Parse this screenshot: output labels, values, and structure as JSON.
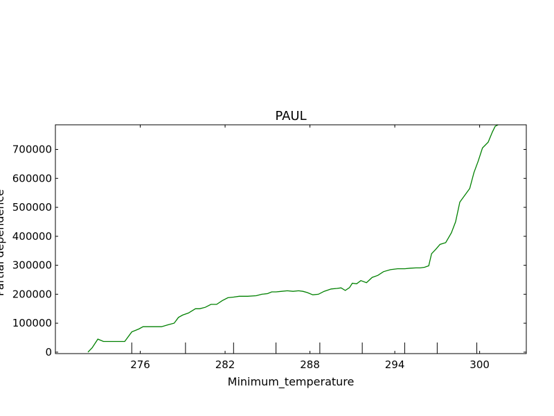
{
  "chart_data": {
    "type": "line",
    "title": "PAUL",
    "xlabel": "Minimum_temperature",
    "ylabel": "Partial dependence",
    "xlim": [
      270.0,
      303.3
    ],
    "ylim": [
      -5000,
      785000
    ],
    "x_ticks": [
      276,
      282,
      288,
      294,
      300
    ],
    "y_ticks": [
      0,
      100000,
      200000,
      300000,
      400000,
      500000,
      600000,
      700000
    ],
    "rug_x": [
      275.4,
      279.2,
      282.6,
      285.6,
      288.7,
      291.7,
      294.7,
      297.0,
      299.8
    ],
    "grid": false,
    "legend": "none",
    "line_color": "#008000",
    "series": [
      {
        "x": [
          272.3,
          272.6,
          273.0,
          273.4,
          273.9,
          274.4,
          274.9,
          275.4,
          275.9,
          276.2,
          276.6,
          277.0,
          277.5,
          278.0,
          278.4,
          278.7,
          279.0,
          279.4,
          279.9,
          280.2,
          280.6,
          281.0,
          281.4,
          281.8,
          282.2,
          282.6,
          283.0,
          283.6,
          284.2,
          284.6,
          285.0,
          285.3,
          285.6,
          286.0,
          286.4,
          286.8,
          287.2,
          287.5,
          287.8,
          288.2,
          288.6,
          289.0,
          289.5,
          289.9,
          290.2,
          290.5,
          290.8,
          291.0,
          291.3,
          291.6,
          292.0,
          292.4,
          292.8,
          293.2,
          293.7,
          294.2,
          294.7,
          295.1,
          295.5,
          295.8,
          296.1,
          296.4,
          296.6,
          296.9,
          297.2,
          297.6,
          298.0,
          298.3,
          298.6,
          299.0,
          299.3,
          299.6,
          299.9,
          300.2,
          300.6,
          300.9,
          301.1,
          301.3
        ],
        "y": [
          0,
          15000,
          45000,
          37000,
          37000,
          37000,
          37000,
          70000,
          80000,
          88000,
          88000,
          88000,
          88000,
          95000,
          100000,
          120000,
          128000,
          135000,
          150000,
          150000,
          155000,
          165000,
          165000,
          178000,
          188000,
          190000,
          193000,
          193000,
          195000,
          200000,
          202000,
          208000,
          208000,
          210000,
          212000,
          210000,
          212000,
          210000,
          206000,
          198000,
          200000,
          210000,
          218000,
          220000,
          222000,
          213000,
          223000,
          238000,
          236000,
          247000,
          240000,
          258000,
          265000,
          278000,
          285000,
          288000,
          288000,
          290000,
          291000,
          291000,
          293000,
          298000,
          340000,
          355000,
          372000,
          378000,
          412000,
          450000,
          518000,
          545000,
          565000,
          620000,
          660000,
          705000,
          725000,
          760000,
          780000,
          785000
        ]
      }
    ]
  }
}
